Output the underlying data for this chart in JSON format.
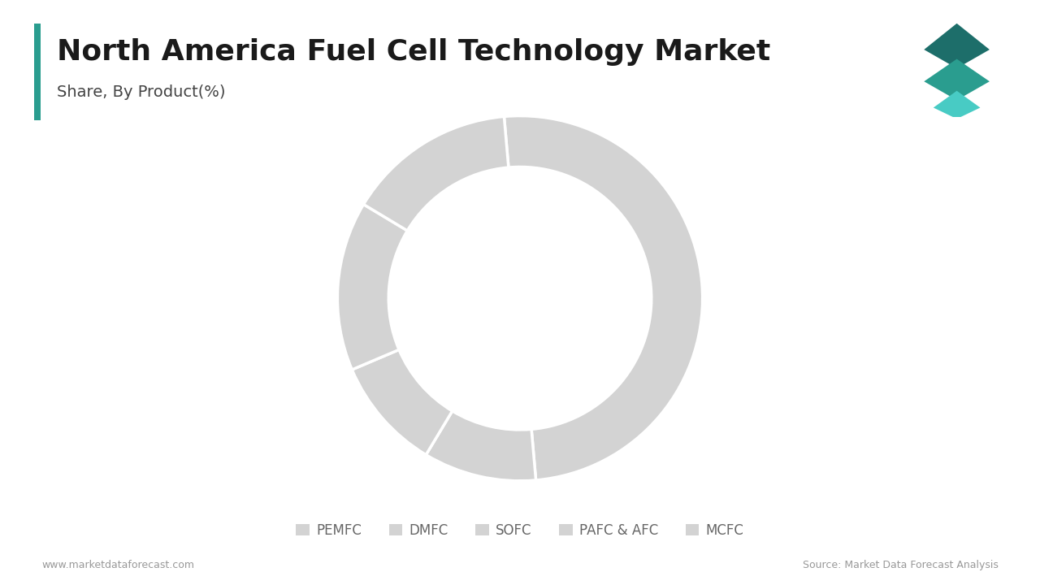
{
  "title": "North America Fuel Cell Technology Market",
  "subtitle": "Share, By Product(%)",
  "labels": [
    "PEMFC",
    "DMFC",
    "SOFC",
    "PAFC & AFC",
    "MCFC"
  ],
  "values": [
    50,
    10,
    10,
    15,
    15
  ],
  "colors": [
    "#d3d3d3",
    "#d3d3d3",
    "#d3d3d3",
    "#d3d3d3",
    "#d3d3d3"
  ],
  "wedge_edge_color": "#ffffff",
  "wedge_linewidth": 2.5,
  "donut_width": 0.28,
  "background_color": "#ffffff",
  "title_fontsize": 26,
  "subtitle_fontsize": 14,
  "legend_fontsize": 12,
  "footer_left": "www.marketdataforecast.com",
  "footer_right": "Source: Market Data Forecast Analysis",
  "footer_fontsize": 9,
  "title_color": "#1a1a1a",
  "subtitle_color": "#444444",
  "legend_color": "#666666",
  "footer_color": "#999999",
  "accent_bar_color": "#2a9d8f",
  "logo_colors": [
    "#1d6e6a",
    "#2a9d8f",
    "#48cbc4"
  ]
}
